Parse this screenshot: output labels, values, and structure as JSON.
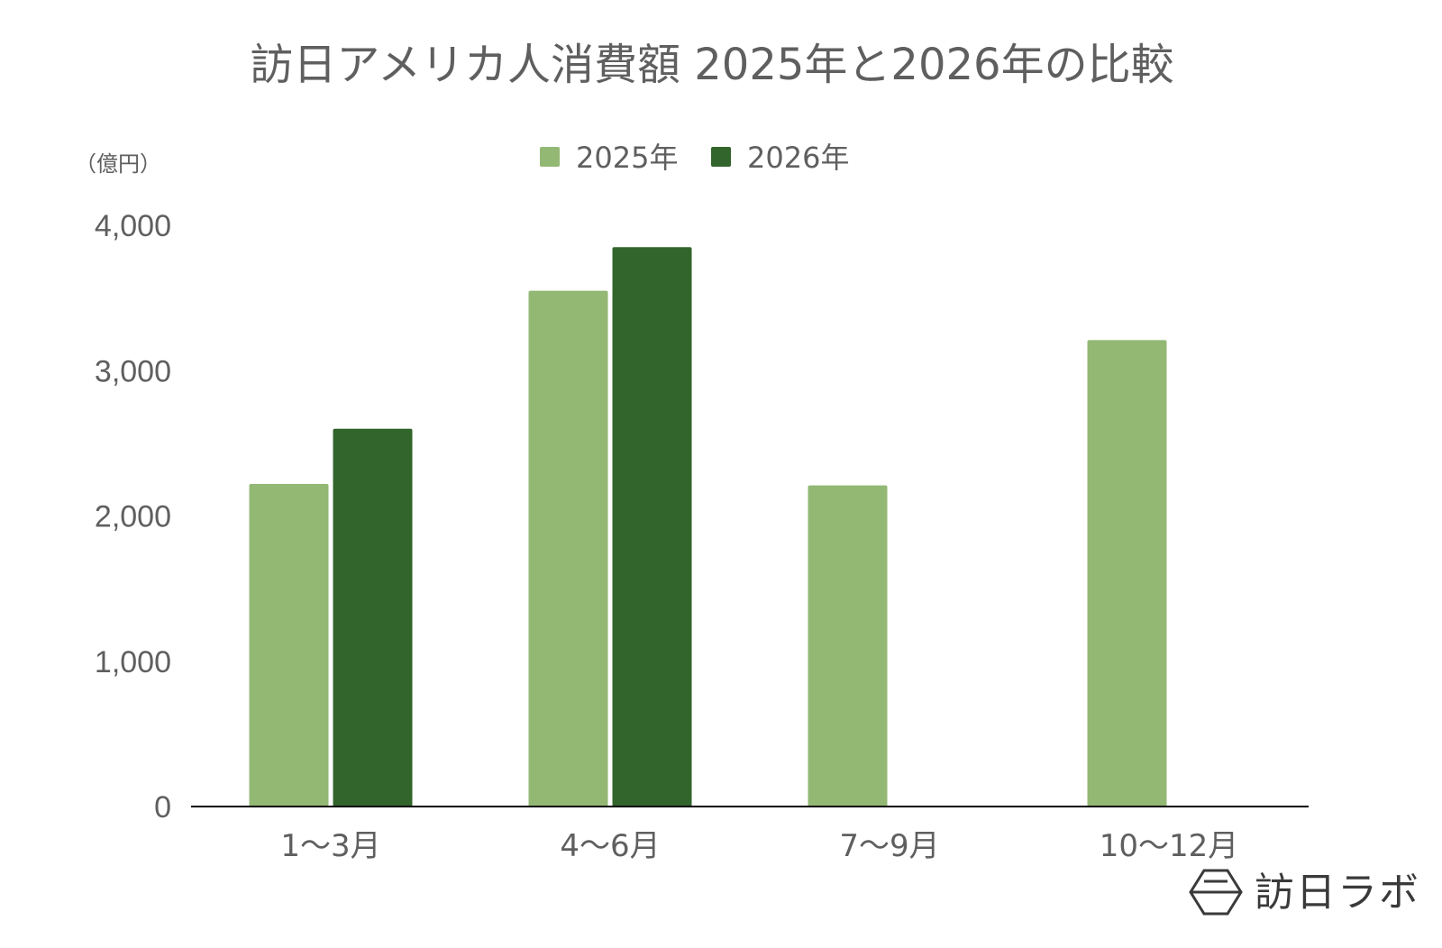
{
  "chart_data": {
    "type": "bar",
    "title": "訪日アメリカ人消費額 2025年と2026年の比較",
    "unit_label": "（億円）",
    "categories": [
      "1〜3月",
      "4〜6月",
      "7〜9月",
      "10〜12月"
    ],
    "series": [
      {
        "name": "2025年",
        "color": "#93b874",
        "values": [
          2220,
          3550,
          2210,
          3210
        ]
      },
      {
        "name": "2026年",
        "color": "#32652c",
        "values": [
          2600,
          3850,
          null,
          null
        ]
      }
    ],
    "ylim": [
      0,
      4000
    ],
    "yticks": [
      0,
      1000,
      2000,
      3000,
      4000
    ],
    "ytick_labels": [
      "0",
      "1,000",
      "2,000",
      "3,000",
      "4,000"
    ],
    "grid": false,
    "legend_position": "top-center"
  },
  "brand": {
    "name": "訪日ラボ",
    "icon": "hexagon-logo-icon"
  },
  "colors": {
    "text": "#5f5f5f",
    "axis": "#000000",
    "background": "#ffffff"
  }
}
